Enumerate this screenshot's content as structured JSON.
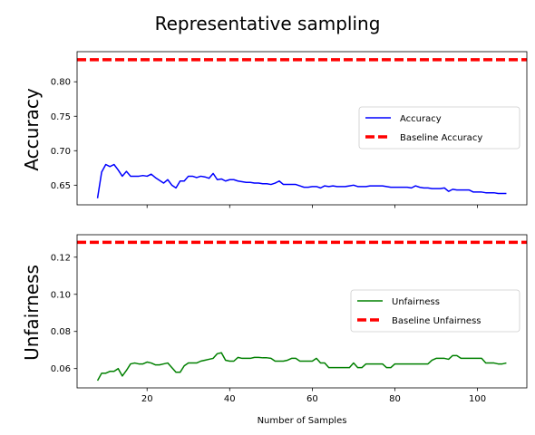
{
  "figure": {
    "title": "Representative sampling",
    "xlabel": "Number of Samples"
  },
  "chart_data": [
    {
      "type": "line",
      "ylabel": "Accuracy",
      "xlim": [
        3.05,
        111.95
      ],
      "ylim": [
        0.6215,
        0.8437
      ],
      "xticks": [
        20,
        40,
        60,
        80,
        100
      ],
      "xtick_labels_visible": false,
      "yticks": [
        0.65,
        0.7,
        0.75,
        0.8
      ],
      "ytick_labels": [
        "0.65",
        "0.70",
        "0.75",
        "0.80"
      ],
      "grid": false,
      "legend_position": "center-right",
      "series": [
        {
          "name": "Accuracy",
          "color": "#0000ff",
          "style": "solid",
          "x": [
            8,
            9,
            10,
            11,
            12,
            13,
            14,
            15,
            16,
            17,
            18,
            19,
            20,
            21,
            22,
            23,
            24,
            25,
            26,
            27,
            28,
            29,
            30,
            31,
            32,
            33,
            34,
            35,
            36,
            37,
            38,
            39,
            40,
            41,
            42,
            43,
            44,
            45,
            46,
            47,
            48,
            49,
            50,
            51,
            52,
            53,
            54,
            55,
            56,
            57,
            58,
            59,
            60,
            61,
            62,
            63,
            64,
            65,
            66,
            67,
            68,
            69,
            70,
            71,
            72,
            73,
            74,
            75,
            76,
            77,
            78,
            79,
            80,
            81,
            82,
            83,
            84,
            85,
            86,
            87,
            88,
            89,
            90,
            91,
            92,
            93,
            94,
            95,
            96,
            97,
            98,
            99,
            100,
            101,
            102,
            103,
            104,
            105,
            106,
            107
          ],
          "y": [
            0.631,
            0.669,
            0.68,
            0.677,
            0.68,
            0.672,
            0.663,
            0.67,
            0.663,
            0.663,
            0.663,
            0.664,
            0.663,
            0.666,
            0.661,
            0.657,
            0.653,
            0.658,
            0.65,
            0.646,
            0.656,
            0.656,
            0.663,
            0.663,
            0.661,
            0.663,
            0.662,
            0.66,
            0.667,
            0.658,
            0.659,
            0.656,
            0.658,
            0.658,
            0.656,
            0.655,
            0.654,
            0.654,
            0.653,
            0.653,
            0.652,
            0.652,
            0.651,
            0.653,
            0.656,
            0.651,
            0.651,
            0.651,
            0.651,
            0.649,
            0.647,
            0.647,
            0.648,
            0.648,
            0.646,
            0.649,
            0.648,
            0.649,
            0.648,
            0.648,
            0.648,
            0.649,
            0.65,
            0.648,
            0.648,
            0.648,
            0.649,
            0.649,
            0.649,
            0.649,
            0.648,
            0.647,
            0.647,
            0.647,
            0.647,
            0.647,
            0.646,
            0.649,
            0.647,
            0.646,
            0.646,
            0.645,
            0.645,
            0.645,
            0.646,
            0.641,
            0.644,
            0.643,
            0.643,
            0.643,
            0.643,
            0.64,
            0.64,
            0.64,
            0.639,
            0.639,
            0.639,
            0.638,
            0.638,
            0.638
          ]
        },
        {
          "name": "Baseline Accuracy",
          "color": "#ff0000",
          "style": "dashed",
          "constant_y": 0.832
        }
      ]
    },
    {
      "type": "line",
      "ylabel": "Unfairness",
      "xlim": [
        3.05,
        111.95
      ],
      "ylim": [
        0.0496,
        0.1321
      ],
      "xticks": [
        20,
        40,
        60,
        80,
        100
      ],
      "xtick_labels": [
        "20",
        "40",
        "60",
        "80",
        "100"
      ],
      "yticks": [
        0.06,
        0.08,
        0.1,
        0.12
      ],
      "ytick_labels": [
        "0.06",
        "0.08",
        "0.10",
        "0.12"
      ],
      "grid": false,
      "legend_position": "center-right",
      "series": [
        {
          "name": "Unfairness",
          "color": "#008000",
          "style": "solid",
          "x": [
            8,
            9,
            10,
            11,
            12,
            13,
            14,
            15,
            16,
            17,
            18,
            19,
            20,
            21,
            22,
            23,
            24,
            25,
            26,
            27,
            28,
            29,
            30,
            31,
            32,
            33,
            34,
            35,
            36,
            37,
            38,
            39,
            40,
            41,
            42,
            43,
            44,
            45,
            46,
            47,
            48,
            49,
            50,
            51,
            52,
            53,
            54,
            55,
            56,
            57,
            58,
            59,
            60,
            61,
            62,
            63,
            64,
            65,
            66,
            67,
            68,
            69,
            70,
            71,
            72,
            73,
            74,
            75,
            76,
            77,
            78,
            79,
            80,
            81,
            82,
            83,
            84,
            85,
            86,
            87,
            88,
            89,
            90,
            91,
            92,
            93,
            94,
            95,
            96,
            97,
            98,
            99,
            100,
            101,
            102,
            103,
            104,
            105,
            106,
            107
          ],
          "y": [
            0.0535,
            0.0575,
            0.0575,
            0.0585,
            0.0585,
            0.06,
            0.056,
            0.059,
            0.0625,
            0.063,
            0.0625,
            0.0625,
            0.0635,
            0.063,
            0.062,
            0.062,
            0.0625,
            0.063,
            0.0605,
            0.058,
            0.058,
            0.0615,
            0.063,
            0.063,
            0.063,
            0.064,
            0.0645,
            0.065,
            0.0655,
            0.068,
            0.0685,
            0.0645,
            0.064,
            0.064,
            0.066,
            0.0655,
            0.0655,
            0.0655,
            0.066,
            0.066,
            0.0658,
            0.0658,
            0.0655,
            0.064,
            0.064,
            0.064,
            0.0645,
            0.0655,
            0.0655,
            0.064,
            0.064,
            0.064,
            0.064,
            0.0655,
            0.063,
            0.063,
            0.0605,
            0.0605,
            0.0605,
            0.0605,
            0.0605,
            0.0605,
            0.063,
            0.0605,
            0.0605,
            0.0625,
            0.0625,
            0.0625,
            0.0625,
            0.0625,
            0.0605,
            0.0605,
            0.0625,
            0.0625,
            0.0625,
            0.0625,
            0.0625,
            0.0625,
            0.0625,
            0.0625,
            0.0625,
            0.0645,
            0.0655,
            0.0655,
            0.0655,
            0.065,
            0.067,
            0.067,
            0.0655,
            0.0655,
            0.0655,
            0.0655,
            0.0655,
            0.0655,
            0.063,
            0.063,
            0.063,
            0.0625,
            0.0625,
            0.063
          ]
        },
        {
          "name": "Baseline Unfairness",
          "color": "#ff0000",
          "style": "dashed",
          "constant_y": 0.128
        }
      ]
    }
  ]
}
